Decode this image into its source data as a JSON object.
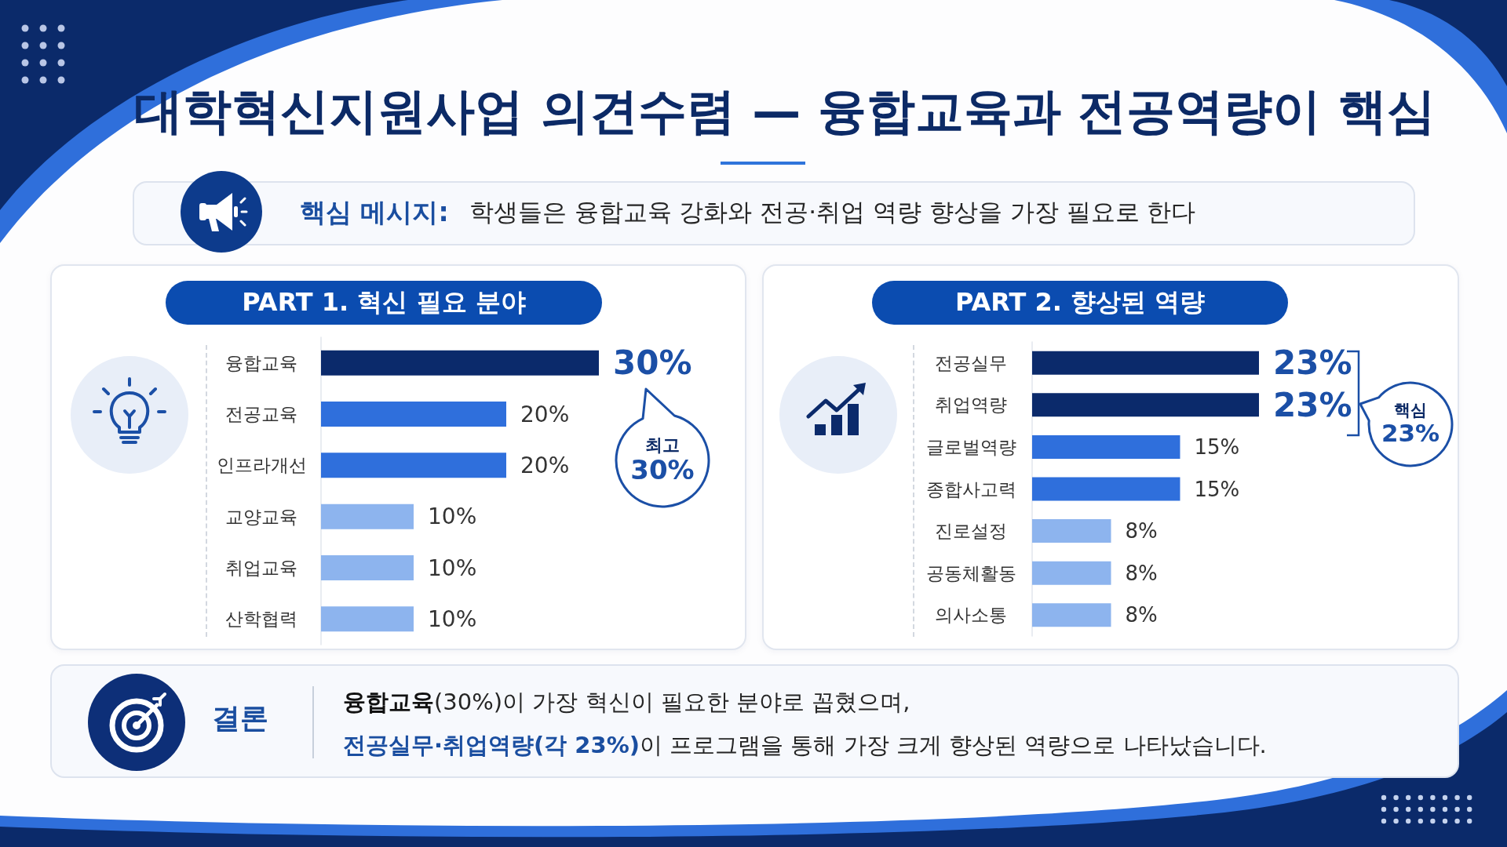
{
  "chart_data": [
    {
      "type": "other",
      "title": "대학혁신지원사업 의견수렴 — 융합교육과 전공역량이 핵심",
      "annotations": [
        "핵심 메시지:",
        "학생들은 융합교육 강화와 전공·취업 역량 향상을 가장 필요로 한다"
      ]
    },
    {
      "type": "bar",
      "orientation": "horizontal",
      "title": "PART 1. 혁신 필요 분야",
      "categories": [
        "융합교육",
        "전공교육",
        "인프라개선",
        "교양교육",
        "취업교육",
        "산학협력"
      ],
      "values": [
        30,
        20,
        20,
        10,
        10,
        10
      ],
      "colors": [
        "#0b2a6b",
        "#2f6fdc",
        "#2f6fdc",
        "#8db4ee",
        "#8db4ee",
        "#8db4ee"
      ],
      "value_labels": [
        "30%",
        "20%",
        "20%",
        "10%",
        "10%",
        "10%"
      ],
      "annotations": [
        "최고\n30%"
      ]
    },
    {
      "type": "bar",
      "orientation": "horizontal",
      "title": "PART 2. 향상된 역량",
      "categories": [
        "전공실무",
        "취업역량",
        "글로벌역량",
        "종합사고력",
        "진로설정",
        "공동체활동",
        "의사소통"
      ],
      "values": [
        23,
        23,
        15,
        15,
        8,
        8,
        8
      ],
      "colors": [
        "#0b2a6b",
        "#0b2a6b",
        "#2f6fdc",
        "#2f6fdc",
        "#8db4ee",
        "#8db4ee",
        "#8db4ee"
      ],
      "value_labels": [
        "23%",
        "23%",
        "15%",
        "15%",
        "8%",
        "8%",
        "8%"
      ],
      "annotations": [
        "핵심\n23%"
      ]
    },
    {
      "type": "other",
      "title": "결론",
      "annotations": [
        "융합교육",
        "(30%)이 가장 혁신이 필요한 분야로 꼽혔으며,",
        "전공실무·취업역량(각 23%)",
        "이 프로그램을 통해 가장 크게 향상된 역량으로 나타났습니다."
      ]
    }
  ]
}
